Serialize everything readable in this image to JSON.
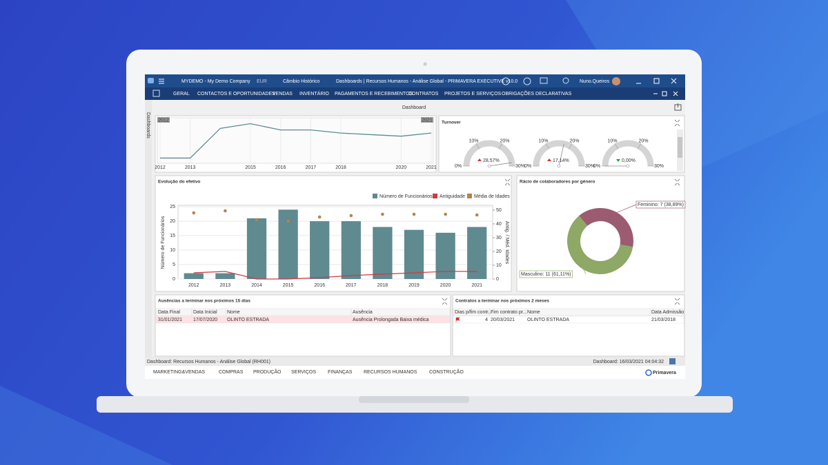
{
  "titlebar": {
    "company": "MYDEMO - My Demo Company",
    "currency": "EUR",
    "exchange": "Câmbio Histórico",
    "title": "Dashboards | Recursos Humanos - Análise Global - PRIMAVERA EXECUTIVE v10.0",
    "user": "Nuno.Queiros"
  },
  "menu": [
    "GERAL",
    "CONTACTOS E OPORTUNIDADES",
    "VENDAS",
    "INVENTÁRIO",
    "PAGAMENTOS E RECEBIMENTOS",
    "CONTRATOS",
    "PROJETOS E SERVIÇOS",
    "OBRIGAÇÕES DECLARATIVAS"
  ],
  "side_tab": "Dashboards",
  "page_title": "Dashboard",
  "overview": {
    "type": "line",
    "x": [
      2012,
      2013,
      2014,
      2015,
      2016,
      2017,
      2018,
      2019,
      2020,
      2021
    ],
    "values": [
      2,
      2,
      21,
      24,
      20,
      20,
      18,
      17,
      16,
      18
    ],
    "color": "#5b8a93",
    "xlim": [
      2012,
      2021
    ],
    "ylim": [
      0,
      26
    ],
    "xticks": [
      2012,
      2013,
      2015,
      2016,
      2017,
      2018,
      2020,
      2021
    ]
  },
  "turnover": {
    "type": "gauge",
    "title": "Turnover",
    "values": [
      28.57,
      17.14,
      0.0
    ],
    "value_labels": [
      "28,57%",
      "17,14%",
      "0,00%"
    ],
    "trend": [
      "up",
      "up",
      "down"
    ],
    "lim": [
      0,
      30
    ],
    "ticks": [
      {
        "value": 0,
        "label": "0%"
      },
      {
        "value": 10,
        "label": "10%"
      },
      {
        "value": 20,
        "label": "20%"
      },
      {
        "value": 30,
        "label": "30%"
      }
    ]
  },
  "headcount": {
    "type": "bar",
    "title": "Evolução do efetivo",
    "categories": [
      "2012",
      "2013",
      "2014",
      "2015",
      "2016",
      "2017",
      "2018",
      "2019",
      "2020",
      "2021"
    ],
    "series": [
      {
        "name": "Número de Funcionários",
        "type": "bar",
        "color": "#5f8a90",
        "values": [
          2,
          2,
          21,
          24,
          20,
          20,
          18,
          17,
          16,
          18
        ]
      },
      {
        "name": "Antiguidade",
        "type": "line",
        "axis": "y2",
        "color": "#d0393f",
        "values": [
          4.5,
          5.5,
          0,
          0,
          1,
          2.5,
          3.5,
          4.5,
          5.5,
          5.5
        ]
      },
      {
        "name": "Média de Idades",
        "type": "scatter",
        "axis": "y2",
        "color": "#b5834a",
        "values": [
          48,
          49.5,
          43,
          42,
          45,
          46,
          47,
          47,
          47,
          46.5
        ]
      }
    ],
    "ylabel": "Número de Funcionários",
    "y2label": "Antig. / Méd. Idades",
    "ylim": [
      0,
      25.5
    ],
    "yticks": [
      0,
      5,
      10,
      15,
      20,
      25
    ],
    "y2lim": [
      0,
      53.5
    ],
    "y2ticks": [
      0,
      10,
      20,
      30,
      40,
      50
    ],
    "grid": true
  },
  "gender": {
    "type": "donut",
    "title": "Rácio de colaboradores por género",
    "categories": [
      "Feminino",
      "Masculino"
    ],
    "values": [
      7,
      11
    ],
    "value_labels": [
      "Feminino: 7 (38,89%)",
      "Masculino: 11 (61,11%)"
    ],
    "colors": [
      "#9b5b70",
      "#8ea865"
    ]
  },
  "absences": {
    "title": "Ausências a terminar nos próximos 15 dias",
    "columns": [
      "Data Final",
      "Data Inicial",
      "Nome",
      "Ausência"
    ],
    "rows": [
      [
        "31/01/2021",
        "17/07/2020",
        "OLINTO ESTRADA",
        "Ausência Prolongada Baixa médica"
      ]
    ]
  },
  "contracts": {
    "title": "Contratos a terminar nos próximos 2 meses",
    "columns": [
      "Dias p/fim contr...",
      "Fim contrato pr...",
      "Nome",
      "Data Admissão"
    ],
    "rows": [
      [
        4,
        "20/03/2021",
        "OLINTO ESTRADA",
        "21/03/2018"
      ]
    ]
  },
  "status": {
    "left": "Dashboard: Recursos Humanos - Análise Global (RH001)",
    "right": "Dashboard: 16/03/2021 04:04:32"
  },
  "tabs": [
    "MARKETING&VENDAS",
    "COMPRAS",
    "PRODUÇÃO",
    "SERVIÇOS",
    "FINANÇAS",
    "RECURSOS HUMANOS",
    "CONSTRUÇÃO"
  ],
  "brand": "Primavera"
}
